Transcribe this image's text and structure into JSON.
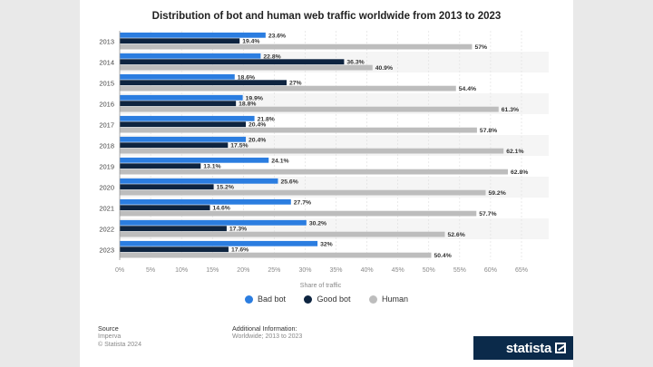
{
  "chart_data": {
    "type": "bar",
    "orientation": "horizontal",
    "title": "Distribution of bot and human web traffic worldwide from 2013 to 2023",
    "xlabel": "Share of traffic",
    "categories": [
      "2013",
      "2014",
      "2015",
      "2016",
      "2017",
      "2018",
      "2019",
      "2020",
      "2021",
      "2022",
      "2023"
    ],
    "xlim": [
      0,
      65
    ],
    "ticks": [
      "0%",
      "5%",
      "10%",
      "15%",
      "20%",
      "25%",
      "30%",
      "35%",
      "40%",
      "45%",
      "50%",
      "55%",
      "60%",
      "65%"
    ],
    "series": [
      {
        "name": "Bad bot",
        "color": "#2b7de0",
        "values": [
          23.6,
          22.8,
          18.6,
          19.9,
          21.8,
          20.4,
          24.1,
          25.6,
          27.7,
          30.2,
          32
        ],
        "labels": [
          "23.6%",
          "22.8%",
          "18.6%",
          "19.9%",
          "21.8%",
          "20.4%",
          "24.1%",
          "25.6%",
          "27.7%",
          "30.2%",
          "32%"
        ]
      },
      {
        "name": "Good bot",
        "color": "#0e2440",
        "values": [
          19.4,
          36.3,
          27,
          18.8,
          20.4,
          17.5,
          13.1,
          15.2,
          14.6,
          17.3,
          17.6
        ],
        "labels": [
          "19.4%",
          "36.3%",
          "27%",
          "18.8%",
          "20.4%",
          "17.5%",
          "13.1%",
          "15.2%",
          "14.6%",
          "17.3%",
          "17.6%"
        ]
      },
      {
        "name": "Human",
        "color": "#bdbdbd",
        "values": [
          57,
          40.9,
          54.4,
          61.3,
          57.8,
          62.1,
          62.8,
          59.2,
          57.7,
          52.6,
          50.4
        ],
        "labels": [
          "57%",
          "40.9%",
          "54.4%",
          "61.3%",
          "57.8%",
          "62.1%",
          "62.8%",
          "59.2%",
          "57.7%",
          "52.6%",
          "50.4%"
        ]
      }
    ],
    "grid": true,
    "legend": "bottom"
  },
  "footer": {
    "source_label": "Source",
    "source_lines": [
      "Imperva",
      "© Statista 2024"
    ],
    "info_label": "Additional Information:",
    "info_line": "Worldwide; 2013 to 2023"
  },
  "brand": "statista"
}
